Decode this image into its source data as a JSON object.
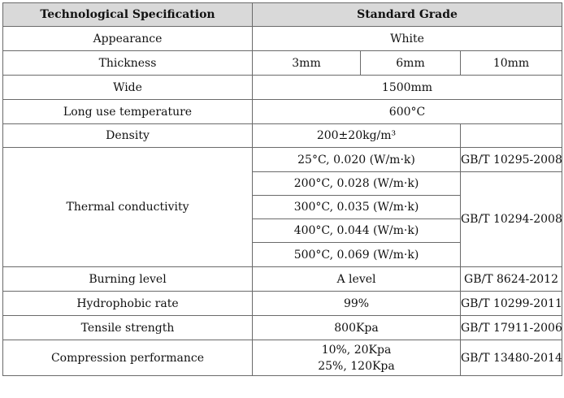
{
  "header": {
    "spec_label": "Technological Specification",
    "grade_label": "Standard Grade"
  },
  "appearance": {
    "label": "Appearance",
    "value": "White"
  },
  "thickness": {
    "label": "Thickness",
    "values": [
      "3mm",
      "6mm",
      "10mm"
    ]
  },
  "wide": {
    "label": "Wide",
    "value": "1500mm"
  },
  "long_use_temperature": {
    "label": "Long use temperature",
    "value": "600°C"
  },
  "density": {
    "label": "Density",
    "value": "200±20kg/m³",
    "standard": ""
  },
  "thermal_conductivity": {
    "label": "Thermal conductivity",
    "rows": [
      {
        "value": "25°C, 0.020 (W/m·k)"
      },
      {
        "value": "200°C, 0.028 (W/m·k)"
      },
      {
        "value": "300°C, 0.035 (W/m·k)"
      },
      {
        "value": "400°C, 0.044 (W/m·k)"
      },
      {
        "value": "500°C, 0.069 (W/m·k)"
      }
    ],
    "standard_25": "GB/T 10295-2008",
    "standard_rest": "GB/T 10294-2008"
  },
  "burning_level": {
    "label": "Burning level",
    "value": "A level",
    "standard": "GB/T 8624-2012"
  },
  "hydrophobic_rate": {
    "label": "Hydrophobic rate",
    "value": "99%",
    "standard": "GB/T 10299-2011"
  },
  "tensile_strength": {
    "label": "Tensile strength",
    "value": "800Kpa",
    "standard": "GB/T 17911-2006"
  },
  "compression_performance": {
    "label": "Compression performance",
    "values": [
      "10%, 20Kpa",
      "25%, 120Kpa"
    ],
    "standard": "GB/T 13480-2014"
  }
}
